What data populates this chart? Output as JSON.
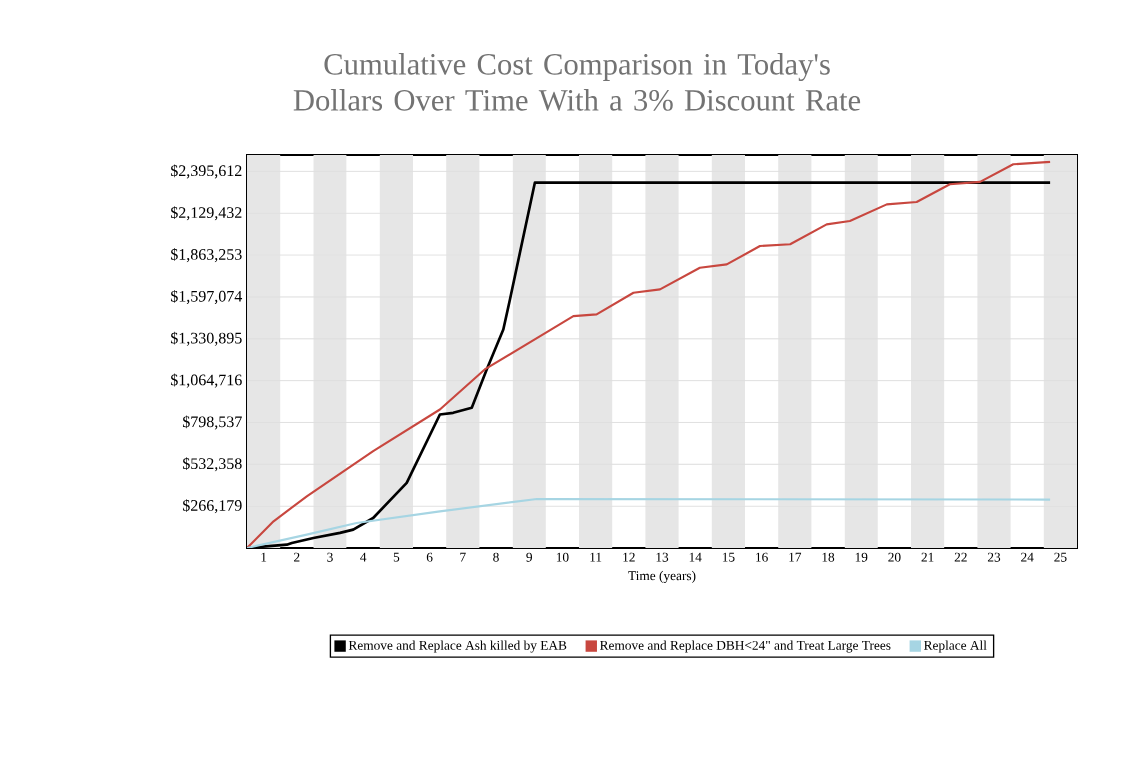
{
  "chart_data": {
    "type": "line",
    "title": "Cumulative Cost Comparison in Today's Dollars Over Time With a 3% Discount Rate",
    "xlabel": "Time (years)",
    "xlim": [
      0.5,
      25.5
    ],
    "xticks": [
      1,
      2,
      3,
      4,
      5,
      6,
      7,
      8,
      9,
      10,
      11,
      12,
      13,
      14,
      15,
      16,
      17,
      18,
      19,
      20,
      21,
      22,
      23,
      24,
      25
    ],
    "ylim": [
      0,
      2500000
    ],
    "yticks": [
      {
        "value": 266179,
        "label": "$266,179"
      },
      {
        "value": 532358,
        "label": "$532,358"
      },
      {
        "value": 798537,
        "label": "$798,537"
      },
      {
        "value": 1064716,
        "label": "$1,064,716"
      },
      {
        "value": 1330895,
        "label": "$1,330,895"
      },
      {
        "value": 1597074,
        "label": "$1,597,074"
      },
      {
        "value": 1863253,
        "label": "$1,863,253"
      },
      {
        "value": 2129432,
        "label": "$2,129,432"
      },
      {
        "value": 2395612,
        "label": "$2,395,612"
      }
    ],
    "grid": "y",
    "legend": "bottom",
    "marker": "none",
    "line_style": "solid",
    "bands": [
      {
        "axis": "x",
        "from": 0.5,
        "to": 1.5,
        "color": "#e6e6e6"
      },
      {
        "axis": "x",
        "from": 2.5,
        "to": 3.5,
        "color": "#e6e6e6"
      },
      {
        "axis": "x",
        "from": 4.5,
        "to": 5.5,
        "color": "#e6e6e6"
      },
      {
        "axis": "x",
        "from": 6.5,
        "to": 7.5,
        "color": "#e6e6e6"
      },
      {
        "axis": "x",
        "from": 8.5,
        "to": 9.5,
        "color": "#e6e6e6"
      },
      {
        "axis": "x",
        "from": 10.5,
        "to": 11.5,
        "color": "#e6e6e6"
      },
      {
        "axis": "x",
        "from": 12.5,
        "to": 13.5,
        "color": "#e6e6e6"
      },
      {
        "axis": "x",
        "from": 14.5,
        "to": 15.5,
        "color": "#e6e6e6"
      },
      {
        "axis": "x",
        "from": 16.5,
        "to": 17.5,
        "color": "#e6e6e6"
      },
      {
        "axis": "x",
        "from": 18.5,
        "to": 19.5,
        "color": "#e6e6e6"
      },
      {
        "axis": "x",
        "from": 20.5,
        "to": 21.5,
        "color": "#e6e6e6"
      },
      {
        "axis": "x",
        "from": 22.5,
        "to": 23.5,
        "color": "#e6e6e6"
      },
      {
        "axis": "x",
        "from": 24.5,
        "to": 25.5,
        "color": "#e6e6e6"
      }
    ],
    "series": [
      {
        "name": "Remove and Replace Ash killed by EAB",
        "color": "#000000",
        "x": [
          0.5,
          1.7,
          1.85,
          2.5,
          3.3,
          3.7,
          4.3,
          5.31,
          6.31,
          6.71,
          7.27,
          7.72,
          8.22,
          8.42,
          9.17,
          24.69
        ],
        "values": [
          0,
          21000,
          32000,
          64000,
          96000,
          117000,
          191000,
          414000,
          849000,
          860000,
          892000,
          1136000,
          1390000,
          1581000,
          2324000,
          2324000
        ]
      },
      {
        "name": "Remove and Replace DBH<24\" and Treat Large Trees",
        "color": "#c8473f",
        "x": [
          0.5,
          1.3,
          2.3,
          4.3,
          6.31,
          7.66,
          9.33,
          10.33,
          11.03,
          12.14,
          12.94,
          14.14,
          14.95,
          15.95,
          16.86,
          17.96,
          18.66,
          19.77,
          20.67,
          21.67,
          22.58,
          23.58,
          24.69
        ],
        "values": [
          0,
          170000,
          329000,
          616000,
          881000,
          1136000,
          1348000,
          1475000,
          1486000,
          1624000,
          1645000,
          1783000,
          1804000,
          1921000,
          1932000,
          2059000,
          2080000,
          2186000,
          2201000,
          2314000,
          2329000,
          2441000,
          2456000
        ]
      },
      {
        "name": "Replace All",
        "color": "#a6d5e3",
        "x": [
          0.5,
          2.3,
          3.8,
          6.31,
          9.23,
          24.69
        ],
        "values": [
          0,
          85000,
          159000,
          233000,
          312000,
          308000
        ]
      }
    ]
  }
}
